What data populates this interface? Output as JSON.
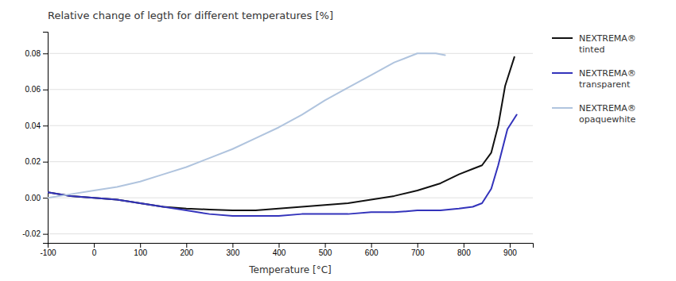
{
  "chart_data": {
    "type": "line",
    "title": "Relative change of legth for different temperatures [%]",
    "xlabel": "Temperature [°C]",
    "xlim": [
      -100,
      950
    ],
    "ylim": [
      -0.025,
      0.092
    ],
    "xticks": [
      -100,
      0,
      100,
      200,
      300,
      400,
      500,
      600,
      700,
      800,
      900
    ],
    "yticks": [
      -0.02,
      {
        "value": 0,
        "label": "0.00"
      },
      0.02,
      0.04,
      0.06,
      0.08
    ],
    "grid": true,
    "legend": "right",
    "series": [
      {
        "name": "NEXTREMA®\ntinted",
        "color": "#111111",
        "x": [
          -100,
          -50,
          0,
          50,
          100,
          150,
          200,
          250,
          300,
          350,
          400,
          450,
          500,
          550,
          600,
          650,
          700,
          750,
          790,
          820,
          840,
          860,
          875,
          890,
          910
        ],
        "values": [
          0.003,
          0.001,
          0.0,
          -0.001,
          -0.003,
          -0.005,
          -0.006,
          -0.0065,
          -0.007,
          -0.007,
          -0.006,
          -0.005,
          -0.004,
          -0.003,
          -0.001,
          0.001,
          0.004,
          0.008,
          0.013,
          0.016,
          0.018,
          0.025,
          0.04,
          0.062,
          0.078
        ]
      },
      {
        "name": "NEXTREMA®\ntransparent",
        "color": "#3333bb",
        "x": [
          -100,
          -50,
          0,
          50,
          100,
          150,
          200,
          250,
          300,
          350,
          400,
          450,
          500,
          550,
          600,
          650,
          700,
          750,
          790,
          820,
          840,
          860,
          875,
          895,
          915
        ],
        "values": [
          0.003,
          0.001,
          0.0,
          -0.001,
          -0.003,
          -0.005,
          -0.007,
          -0.009,
          -0.01,
          -0.01,
          -0.01,
          -0.009,
          -0.009,
          -0.009,
          -0.008,
          -0.008,
          -0.007,
          -0.007,
          -0.006,
          -0.005,
          -0.003,
          0.005,
          0.018,
          0.038,
          0.046
        ]
      },
      {
        "name": "NEXTREMA®\nopaquewhite",
        "color": "#b0c4de",
        "x": [
          -100,
          -50,
          0,
          50,
          100,
          150,
          200,
          250,
          300,
          350,
          400,
          450,
          500,
          550,
          600,
          650,
          700,
          740,
          760
        ],
        "values": [
          0.0,
          0.002,
          0.004,
          0.006,
          0.009,
          0.013,
          0.017,
          0.022,
          0.027,
          0.033,
          0.039,
          0.046,
          0.054,
          0.061,
          0.068,
          0.075,
          0.08,
          0.08,
          0.079
        ]
      }
    ]
  }
}
